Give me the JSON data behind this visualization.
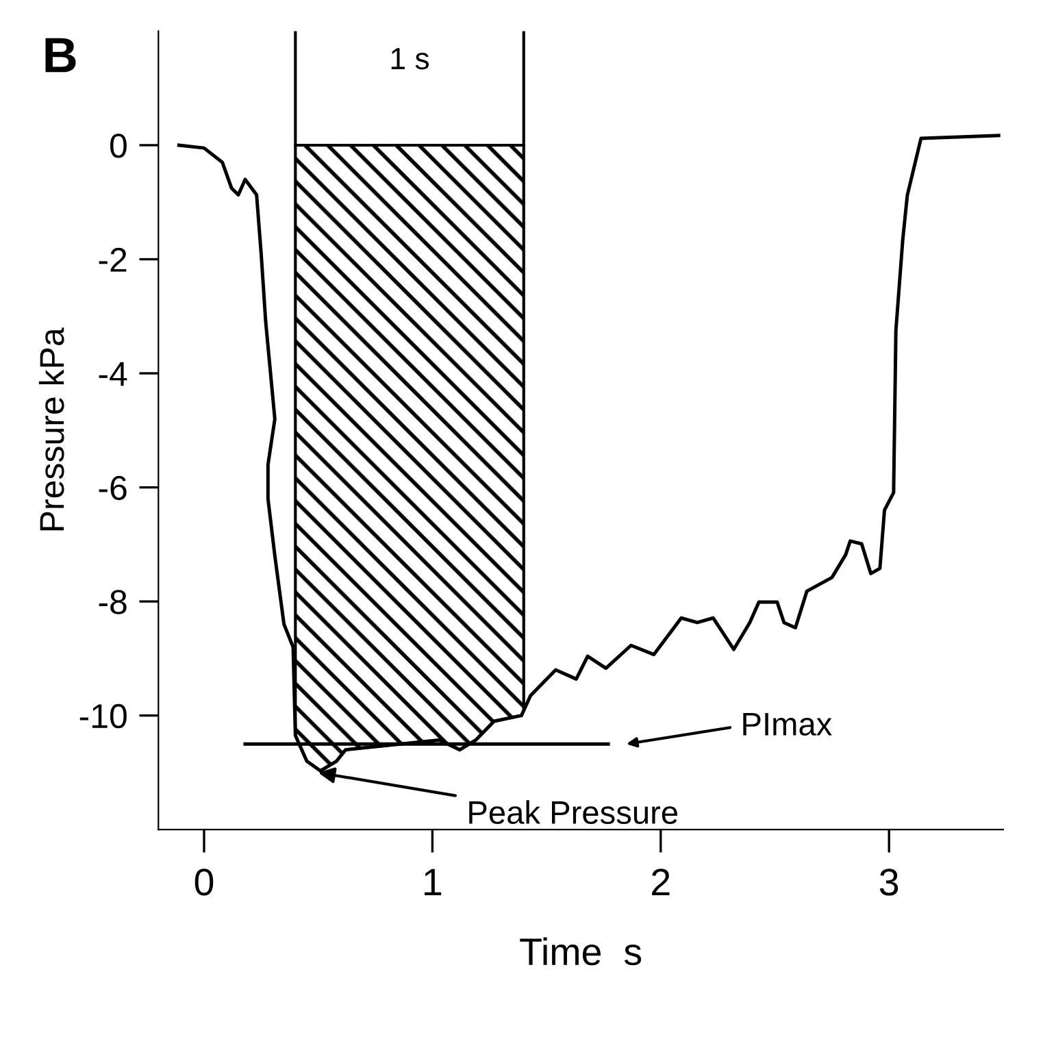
{
  "chart_data": {
    "type": "line",
    "title": "B",
    "xlabel": "Time  s",
    "ylabel": "Pressure kPa",
    "xlim": [
      -0.2,
      3.5
    ],
    "ylim": [
      -12,
      2
    ],
    "xticks": [
      0,
      1,
      2,
      3
    ],
    "yticks": [
      0,
      -2,
      -4,
      -6,
      -8,
      -10
    ],
    "grid": false,
    "series": [
      {
        "color": "#000000",
        "x": [
          -0.11,
          0.0,
          0.08,
          0.12,
          0.15,
          0.18,
          0.23,
          0.25,
          0.27,
          0.31,
          0.28,
          0.28,
          0.31,
          0.35,
          0.39,
          0.4,
          0.45,
          0.51,
          0.58,
          0.62,
          0.86,
          1.03,
          1.12,
          1.19,
          1.27,
          1.39,
          1.43,
          1.54,
          1.63,
          1.68,
          1.76,
          1.87,
          1.97,
          2.09,
          2.16,
          2.23,
          2.32,
          2.39,
          2.43,
          2.51,
          2.54,
          2.59,
          2.64,
          2.75,
          2.81,
          2.83,
          2.88,
          2.92,
          2.96,
          2.98,
          3.02,
          3.03,
          3.06,
          3.08,
          3.14,
          3.48
        ],
        "values": [
          0,
          -0.05,
          -0.3,
          -0.75,
          -0.87,
          -0.6,
          -0.87,
          -1.9,
          -3.1,
          -4.8,
          -5.6,
          -6.2,
          -7.2,
          -8.4,
          -8.8,
          -10.35,
          -10.8,
          -10.97,
          -10.8,
          -10.6,
          -10.5,
          -10.43,
          -10.6,
          -10.43,
          -10.1,
          -10.0,
          -9.65,
          -9.2,
          -9.36,
          -8.96,
          -9.17,
          -8.77,
          -8.93,
          -8.29,
          -8.37,
          -8.29,
          -8.84,
          -8.37,
          -8.01,
          -8.01,
          -8.37,
          -8.46,
          -7.82,
          -7.58,
          -7.18,
          -6.94,
          -6.99,
          -7.51,
          -7.42,
          -6.4,
          -6.09,
          -3.25,
          -1.66,
          -0.88,
          0.12,
          0.17
        ]
      },
      {
        "color": "#000000",
        "x": [
          0.18,
          1.77
        ],
        "values": [
          -10.5,
          -10.5
        ]
      }
    ],
    "bands": [
      {
        "axis": "x",
        "from": 0.4,
        "to": 1.4,
        "color": "#000000"
      }
    ],
    "annotations": [
      "PImax",
      {
        "text": "Peak Pressure",
        "x": 0.5,
        "y": -11.0
      },
      "1 s"
    ]
  }
}
